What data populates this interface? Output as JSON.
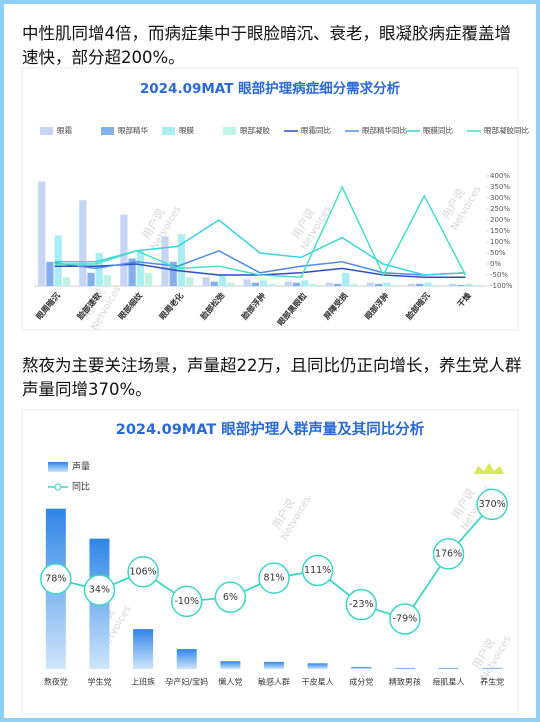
{
  "notes": [
    "中性肌同增4倍，而病症集中于眼脸暗沉、衰老，眼凝胶病症覆盖增速快，部分超200%。",
    "熬夜为主要关注场景，声量超22万，且同比仍正向增长，养生党人群声量同增370%。"
  ],
  "watermark": [
    "用户说",
    "Netvoices"
  ],
  "chart_data": [
    {
      "type": "bar",
      "title": "2024.09MAT 眼部护理病症细分需求分析",
      "categories": [
        "眼周暗沉",
        "脸部速软",
        "眼部细纹",
        "眼周老化",
        "脸部松弛",
        "脸部浮肿",
        "眼部黑眼粒",
        "屏障受损",
        "眼部浮肿",
        "脸部暗沉",
        "干燥"
      ],
      "ylim": [
        0,
        100
      ],
      "y2lim": [
        -100,
        400
      ],
      "y2ticks": [
        {
          "value": 400,
          "label": "400%"
        },
        {
          "value": 350,
          "label": "350%"
        },
        {
          "value": 300,
          "label": "300%"
        },
        {
          "value": 250,
          "label": "250%"
        },
        {
          "value": 200,
          "label": "200%"
        },
        {
          "value": 150,
          "label": "150%"
        },
        {
          "value": 100,
          "label": "100%"
        },
        {
          "value": 50,
          "label": "50%"
        },
        {
          "value": 0,
          "label": "0%"
        },
        {
          "value": -50,
          "label": "-50%"
        },
        {
          "value": -100,
          "label": "-100%"
        }
      ],
      "series": [
        {
          "name": "眼霜",
          "color": "#c5d5f3",
          "values": [
            95,
            78,
            65,
            45,
            8,
            6,
            4,
            3,
            3,
            2,
            2
          ]
        },
        {
          "name": "眼部精华",
          "color": "#86aeea",
          "values": [
            22,
            12,
            25,
            22,
            4,
            3,
            3,
            2,
            2,
            2,
            1
          ]
        },
        {
          "name": "眼膜",
          "color": "#a8eef3",
          "values": [
            46,
            30,
            32,
            47,
            10,
            5,
            5,
            12,
            3,
            3,
            2
          ]
        },
        {
          "name": "眼部凝胶",
          "color": "#bff3e4",
          "values": [
            8,
            10,
            12,
            8,
            3,
            2,
            2,
            2,
            1,
            1,
            1
          ]
        },
        {
          "name": "眼霜同比",
          "color": "#2b4fbf",
          "axis": "y2",
          "type": "line",
          "values": [
            -10,
            -10,
            0,
            -30,
            -50,
            -50,
            -40,
            -20,
            -50,
            -60,
            -60
          ]
        },
        {
          "name": "眼部精华同比",
          "color": "#4f8de8",
          "axis": "y2",
          "type": "line",
          "values": [
            5,
            -20,
            10,
            -10,
            60,
            -40,
            -10,
            10,
            -40,
            -50,
            -40
          ]
        },
        {
          "name": "眼膜同比",
          "color": "#3ad3dc",
          "axis": "y2",
          "type": "line",
          "values": [
            10,
            10,
            60,
            80,
            200,
            50,
            30,
            120,
            0,
            -50,
            -40
          ]
        },
        {
          "name": "眼部凝胶同比",
          "color": "#47e0c5",
          "axis": "y2",
          "type": "line",
          "values": [
            0,
            0,
            60,
            -20,
            -10,
            -50,
            -60,
            350,
            -50,
            310,
            -50
          ]
        }
      ]
    },
    {
      "type": "bar",
      "title": "2024.09MAT 眼部护理人群声量及其同比分析",
      "categories": [
        "熬夜党",
        "学生党",
        "上班族",
        "孕产妇/宝妈",
        "懒人党",
        "敏感人群",
        "干皮星人",
        "成分党",
        "精致男孩",
        "痘肌星人",
        "养生党"
      ],
      "ylim": [
        0,
        24
      ],
      "y2lim": [
        -275,
        395
      ],
      "series": [
        {
          "name": "声量",
          "color": "#2f86e6",
          "values": [
            22.5,
            18.3,
            5.6,
            2.8,
            1.1,
            1.0,
            0.8,
            0.3,
            0.15,
            0.15,
            0.15
          ]
        },
        {
          "name": "同比",
          "color": "#3fd6c6",
          "axis": "y2",
          "type": "line",
          "values": [
            78,
            34,
            106,
            -10,
            6,
            81,
            111,
            -23,
            -79,
            176,
            370
          ],
          "value_labels": [
            "78%",
            "34%",
            "106%",
            "-10%",
            "6%",
            "81%",
            "111%",
            "-23%",
            "-79%",
            "176%",
            "370%"
          ]
        }
      ]
    }
  ]
}
